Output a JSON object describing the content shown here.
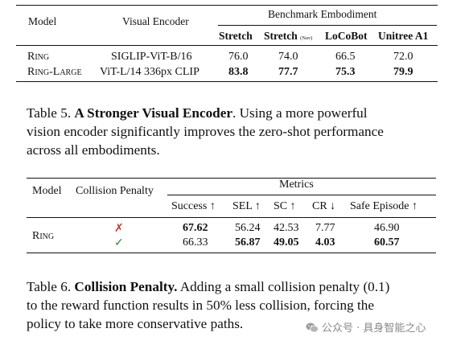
{
  "table5": {
    "headers": {
      "model": "Model",
      "encoder": "Visual Encoder",
      "group": "Benchmark Embodiment",
      "cols": [
        "Stretch",
        "Stretch",
        "LoCoBot",
        "Unitree A1"
      ],
      "nav_tag": "(Nav)"
    },
    "rows": [
      {
        "model": "Ring",
        "encoder": "SIGLIP-ViT-B/16",
        "values": [
          "76.0",
          "74.0",
          "66.5",
          "72.0"
        ],
        "bold": false
      },
      {
        "model": "Ring-Large",
        "encoder": "ViT-L/14 336px CLIP",
        "values": [
          "83.8",
          "77.7",
          "75.3",
          "79.9"
        ],
        "bold": true
      }
    ],
    "caption": {
      "label": "Table 5.",
      "title": "A Stronger Visual Encoder",
      "line1_rest": ". Using a more powerful",
      "line2": "vision encoder significantly improves the zero-shot performance",
      "line3": "across all embodiments."
    }
  },
  "table6": {
    "headers": {
      "model": "Model",
      "penalty": "Collision Penalty",
      "group": "Metrics",
      "cols": [
        "Success ↑",
        "SEL ↑",
        "SC ↑",
        "CR ↓",
        "Safe Episode ↑"
      ]
    },
    "model": "Ring",
    "rows": [
      {
        "penalty": "✗",
        "values": [
          "67.62",
          "56.24",
          "42.53",
          "7.77",
          "46.90"
        ],
        "bold": [
          true,
          false,
          false,
          false,
          false
        ]
      },
      {
        "penalty": "✓",
        "values": [
          "66.33",
          "56.87",
          "49.05",
          "4.03",
          "60.57"
        ],
        "bold": [
          false,
          true,
          true,
          true,
          true
        ]
      }
    ],
    "caption": {
      "label": "Table 6.",
      "title": "Collision Penalty.",
      "line1_rest": " Adding a small collision penalty (0.1)",
      "line2": "to the reward function results in 50% less collision, forcing the",
      "line3": "policy to take more conservative paths."
    }
  },
  "watermark": {
    "text": "公众号 · 具身智能之心",
    "icon": "wechat-icon"
  },
  "colors": {
    "cross": "#c0392b",
    "check": "#2e8b2e",
    "rule": "#111111",
    "watermark": "#888888"
  }
}
